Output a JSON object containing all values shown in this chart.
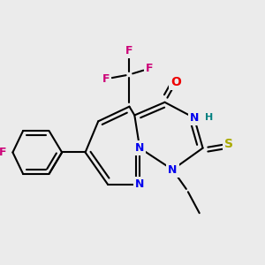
{
  "bg_color": "#ebebeb",
  "bond_color": "#000000",
  "bond_width": 1.5,
  "atom_colors": {
    "N": "#0000ee",
    "O": "#ee0000",
    "S": "#aaaa00",
    "F": "#cc0077",
    "H": "#008080",
    "C": "#000000"
  },
  "font_size": 9,
  "fig_size": [
    3.0,
    3.0
  ],
  "dpi": 100
}
